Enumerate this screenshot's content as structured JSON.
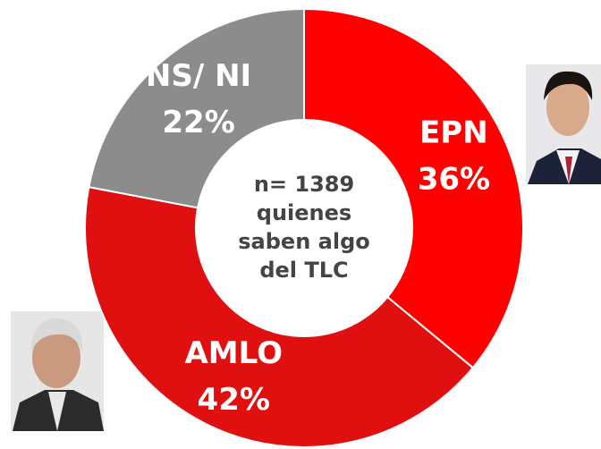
{
  "chart_data": {
    "type": "donut",
    "categories": [
      "EPN",
      "AMLO",
      "NS/ NI"
    ],
    "values": [
      36,
      42,
      22
    ],
    "value_labels": [
      "36%",
      "42%",
      "22%"
    ],
    "colors": [
      "#ff0000",
      "#e01010",
      "#8c8c8c"
    ],
    "center_text": [
      "n= 1389",
      "quienes",
      "saben algo",
      "del TLC"
    ]
  }
}
